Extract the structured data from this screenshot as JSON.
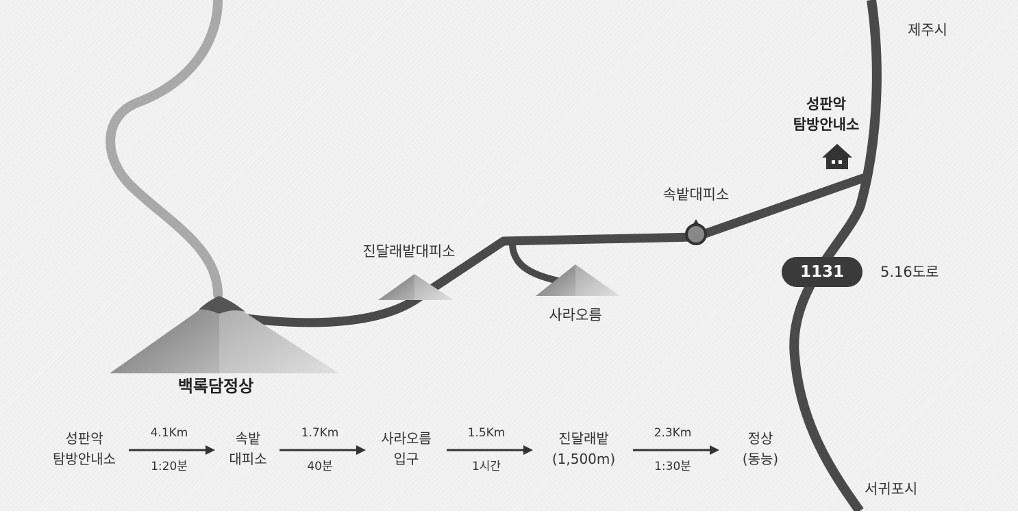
{
  "map": {
    "labels": {
      "jeju_city": "제주시",
      "seogwipo_city": "서귀포시",
      "office_line1": "성판악",
      "office_line2": "탐방안내소",
      "sokbat_shelter": "속밭대피소",
      "jindallae_shelter": "진달래밭대피소",
      "sara_oreum": "사라오름",
      "summit": "백록담정상",
      "road_name": "5.16도로"
    },
    "route_number": "1131",
    "icons": [
      "house-icon",
      "shelter-marker-icon",
      "mountain-icon"
    ]
  },
  "itinerary": {
    "steps": [
      {
        "line1": "성판악",
        "line2": "탐방안내소"
      },
      {
        "line1": "속밭",
        "line2": "대피소"
      },
      {
        "line1": "사라오름",
        "line2": "입구"
      },
      {
        "line1": "진달래밭",
        "line2": "(1,500m)"
      },
      {
        "line1": "정상",
        "line2": "(동능)"
      }
    ],
    "legs": [
      {
        "distance": "4.1Km",
        "time": "1:20분"
      },
      {
        "distance": "1.7Km",
        "time": "40분"
      },
      {
        "distance": "1.5Km",
        "time": "1시간"
      },
      {
        "distance": "2.3Km",
        "time": "1:30분"
      }
    ]
  }
}
